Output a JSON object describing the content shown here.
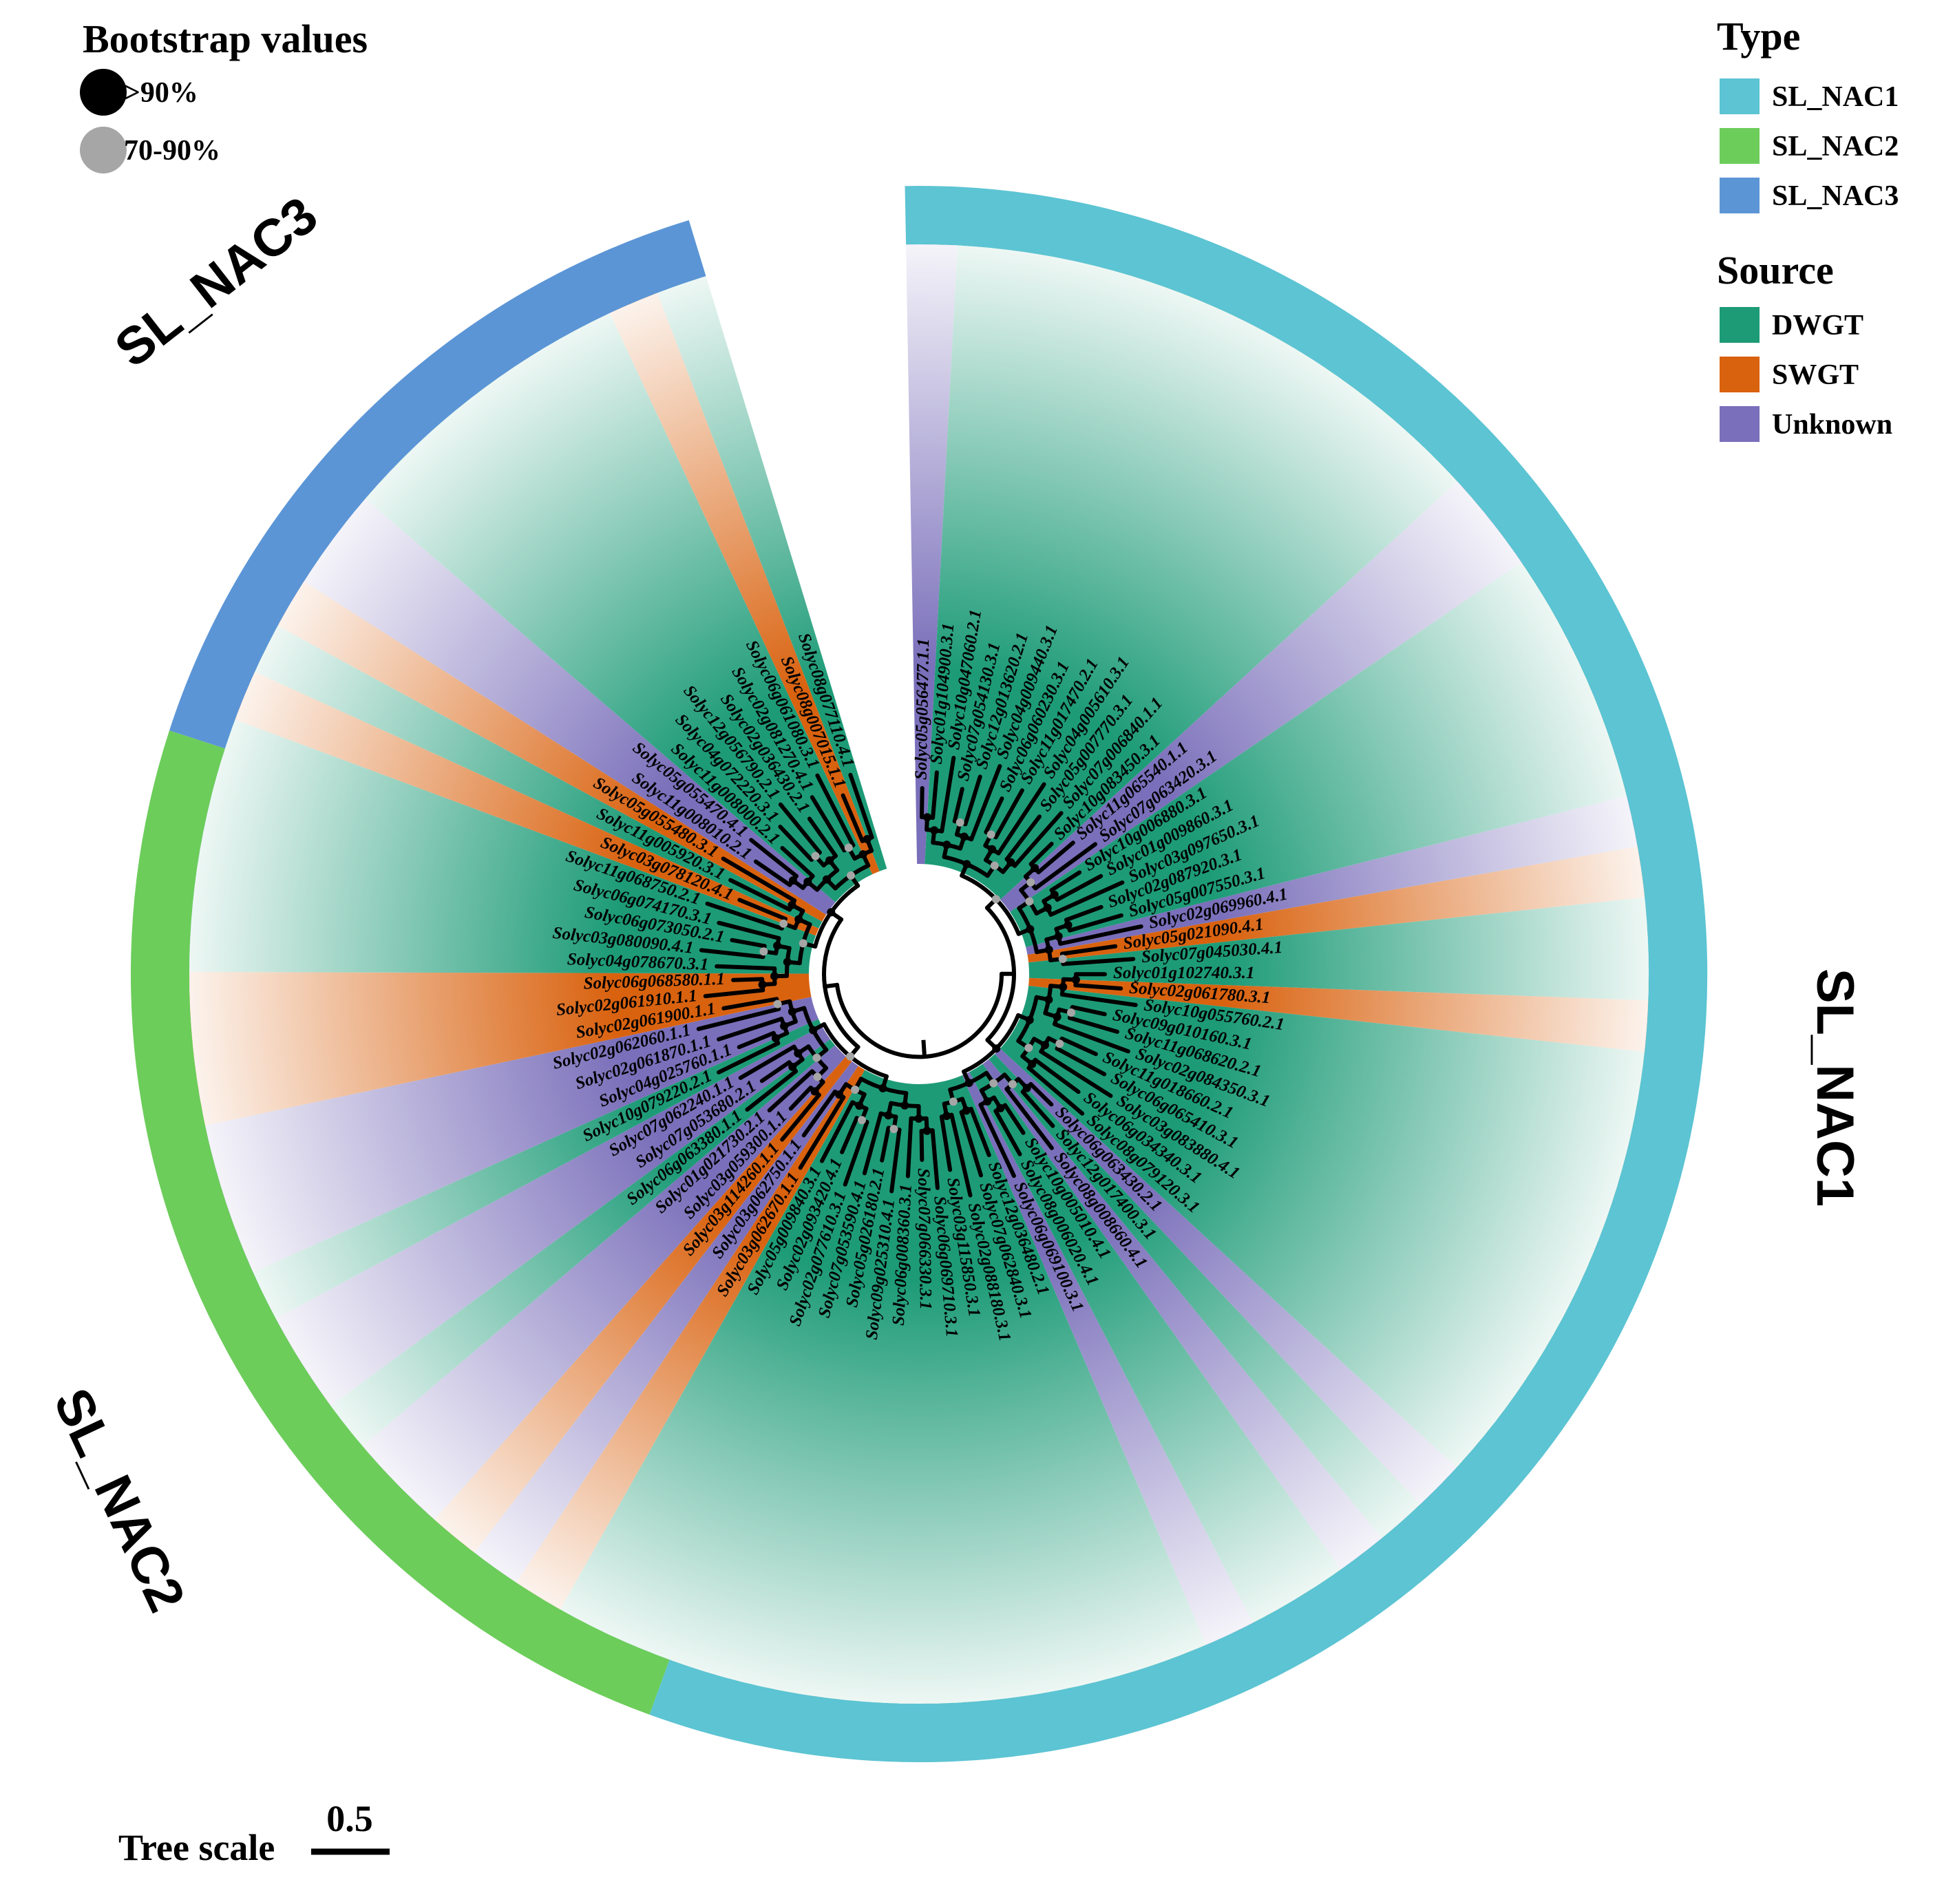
{
  "legend": {
    "bootstrap_title": "Bootstrap values",
    "bootstrap_items": [
      {
        "label": ">90%",
        "color": "#000000"
      },
      {
        "label": "70-90%",
        "color": "#a6a6a6"
      }
    ],
    "type_title": "Type",
    "type_items": [
      {
        "label": "SL_NAC1",
        "color": "#5cc4d3"
      },
      {
        "label": "SL_NAC2",
        "color": "#6ccd5a"
      },
      {
        "label": "SL_NAC3",
        "color": "#5b95d6"
      }
    ],
    "source_title": "Source",
    "source_items": [
      {
        "label": "DWGT",
        "color": "#1d9b77"
      },
      {
        "label": "SWGT",
        "color": "#d9620f"
      },
      {
        "label": "Unknown",
        "color": "#7a6fba"
      }
    ]
  },
  "clades": [
    {
      "label": "SL_NAC1",
      "type": "SL_NAC1"
    },
    {
      "label": "SL_NAC2",
      "type": "SL_NAC2"
    },
    {
      "label": "SL_NAC3",
      "type": "SL_NAC3"
    }
  ],
  "tree_scale": {
    "title": "Tree scale",
    "value": "0.5"
  },
  "leaves": [
    {
      "label": "Solyc05g056477.1.1",
      "source": "Unknown"
    },
    {
      "label": "Solyc01g104900.3.1",
      "source": "DWGT"
    },
    {
      "label": "Solyc10g047060.2.1",
      "source": "DWGT"
    },
    {
      "label": "Solyc07g054130.3.1",
      "source": "DWGT"
    },
    {
      "label": "Solyc12g013620.2.1",
      "source": "DWGT"
    },
    {
      "label": "Solyc04g009440.3.1",
      "source": "DWGT"
    },
    {
      "label": "Solyc06g060230.3.1",
      "source": "DWGT"
    },
    {
      "label": "Solyc11g017470.2.1",
      "source": "DWGT"
    },
    {
      "label": "Solyc04g005610.3.1",
      "source": "DWGT"
    },
    {
      "label": "Solyc05g007770.3.1",
      "source": "DWGT"
    },
    {
      "label": "Solyc07g006840.1.1",
      "source": "DWGT"
    },
    {
      "label": "Solyc10g083450.3.1",
      "source": "DWGT"
    },
    {
      "label": "Solyc11g065540.1.1",
      "source": "Unknown"
    },
    {
      "label": "Solyc07g063420.3.1",
      "source": "Unknown"
    },
    {
      "label": "Solyc10g006880.3.1",
      "source": "DWGT"
    },
    {
      "label": "Solyc01g009860.3.1",
      "source": "DWGT"
    },
    {
      "label": "Solyc03g097650.3.1",
      "source": "DWGT"
    },
    {
      "label": "Solyc02g087920.3.1",
      "source": "DWGT"
    },
    {
      "label": "Solyc05g007550.3.1",
      "source": "DWGT"
    },
    {
      "label": "Solyc02g069960.4.1",
      "source": "Unknown"
    },
    {
      "label": "Solyc05g021090.4.1",
      "source": "SWGT"
    },
    {
      "label": "Solyc07g045030.4.1",
      "source": "DWGT"
    },
    {
      "label": "Solyc01g102740.3.1",
      "source": "DWGT"
    },
    {
      "label": "Solyc02g061780.3.1",
      "source": "SWGT"
    },
    {
      "label": "Solyc10g055760.2.1",
      "source": "DWGT"
    },
    {
      "label": "Solyc09g010160.3.1",
      "source": "DWGT"
    },
    {
      "label": "Solyc11g068620.2.1",
      "source": "DWGT"
    },
    {
      "label": "Solyc02g084350.3.1",
      "source": "DWGT"
    },
    {
      "label": "Solyc11g018660.2.1",
      "source": "DWGT"
    },
    {
      "label": "Solyc06g065410.3.1",
      "source": "DWGT"
    },
    {
      "label": "Solyc03g083880.4.1",
      "source": "DWGT"
    },
    {
      "label": "Solyc06g034340.3.1",
      "source": "DWGT"
    },
    {
      "label": "Solyc08g079120.3.1",
      "source": "DWGT"
    },
    {
      "label": "Solyc06g063430.2.1",
      "source": "Unknown"
    },
    {
      "label": "Solyc12g017400.3.1",
      "source": "DWGT"
    },
    {
      "label": "Solyc08g008660.4.1",
      "source": "Unknown"
    },
    {
      "label": "Solyc10g005010.4.1",
      "source": "DWGT"
    },
    {
      "label": "Solyc08g006020.4.1",
      "source": "DWGT"
    },
    {
      "label": "Solyc06g069100.3.1",
      "source": "Unknown"
    },
    {
      "label": "Solyc12g036480.2.1",
      "source": "DWGT"
    },
    {
      "label": "Solyc07g062840.3.1",
      "source": "DWGT"
    },
    {
      "label": "Solyc02g088180.3.1",
      "source": "DWGT"
    },
    {
      "label": "Solyc03g115850.3.1",
      "source": "DWGT"
    },
    {
      "label": "Solyc06g069710.3.1",
      "source": "DWGT"
    },
    {
      "label": "Solyc07g066330.3.1",
      "source": "DWGT"
    },
    {
      "label": "Solyc06g008360.3.1",
      "source": "DWGT"
    },
    {
      "label": "Solyc09g025310.4.1",
      "source": "DWGT"
    },
    {
      "label": "Solyc05g026180.2.1",
      "source": "DWGT"
    },
    {
      "label": "Solyc07g053590.4.1",
      "source": "DWGT"
    },
    {
      "label": "Solyc02g077610.3.1",
      "source": "DWGT"
    },
    {
      "label": "Solyc02g093420.4.1",
      "source": "DWGT"
    },
    {
      "label": "Solyc05g009840.3.1",
      "source": "DWGT"
    },
    {
      "label": "Solyc03g062670.1.1",
      "source": "SWGT"
    },
    {
      "label": "Solyc03g062750.1.1",
      "source": "Unknown"
    },
    {
      "label": "Solyc03g114260.1.1",
      "source": "SWGT"
    },
    {
      "label": "Solyc03g059300.1.1",
      "source": "Unknown"
    },
    {
      "label": "Solyc01g021730.2.1",
      "source": "Unknown"
    },
    {
      "label": "Solyc06g063380.1.1",
      "source": "DWGT"
    },
    {
      "label": "Solyc07g053680.2.1",
      "source": "Unknown"
    },
    {
      "label": "Solyc07g062240.1.1",
      "source": "Unknown"
    },
    {
      "label": "Solyc10g079220.2.1",
      "source": "DWGT"
    },
    {
      "label": "Solyc04g025760.1.1",
      "source": "Unknown"
    },
    {
      "label": "Solyc02g061870.1.1",
      "source": "Unknown"
    },
    {
      "label": "Solyc02g062060.1.1",
      "source": "Unknown"
    },
    {
      "label": "Solyc02g061900.1.1",
      "source": "SWGT"
    },
    {
      "label": "Solyc02g061910.1.1",
      "source": "SWGT"
    },
    {
      "label": "Solyc06g068580.1.1",
      "source": "SWGT"
    },
    {
      "label": "Solyc04g078670.3.1",
      "source": "DWGT"
    },
    {
      "label": "Solyc03g080090.4.1",
      "source": "DWGT"
    },
    {
      "label": "Solyc06g073050.2.1",
      "source": "DWGT"
    },
    {
      "label": "Solyc06g074170.3.1",
      "source": "DWGT"
    },
    {
      "label": "Solyc11g068750.2.1",
      "source": "DWGT"
    },
    {
      "label": "Solyc03g078120.4.1",
      "source": "SWGT"
    },
    {
      "label": "Solyc11g005920.3.1",
      "source": "DWGT"
    },
    {
      "label": "Solyc05g055480.3.1",
      "source": "SWGT"
    },
    {
      "label": "Solyc11g008010.2.1",
      "source": "Unknown"
    },
    {
      "label": "Solyc05g055470.4.1",
      "source": "Unknown"
    },
    {
      "label": "Solyc11g008000.2.1",
      "source": "DWGT"
    },
    {
      "label": "Solyc04g072220.3.1",
      "source": "DWGT"
    },
    {
      "label": "Solyc12g056790.2.1",
      "source": "DWGT"
    },
    {
      "label": "Solyc02g036430.2.1",
      "source": "DWGT"
    },
    {
      "label": "Solyc02g081270.4.1",
      "source": "DWGT"
    },
    {
      "label": "Solyc06g061080.3.1",
      "source": "DWGT"
    },
    {
      "label": "Solyc08g007015.1.1",
      "source": "SWGT"
    },
    {
      "label": "Solyc08g077110.4.1",
      "source": "DWGT"
    }
  ]
}
